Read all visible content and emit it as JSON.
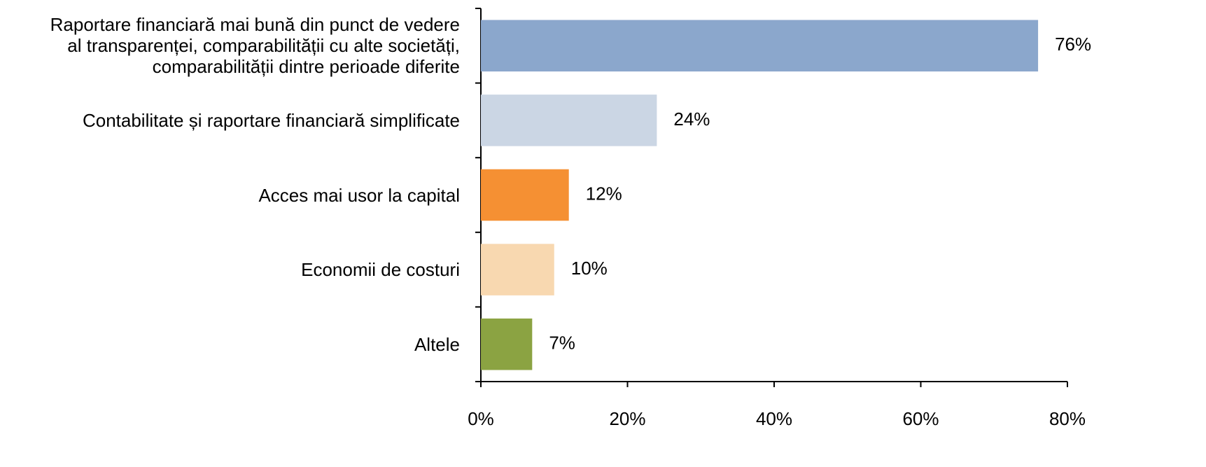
{
  "chart_data": {
    "type": "hbar",
    "categories": [
      "Raportare financiară mai bună din punct de vedere\nal transparenței, comparabilității cu alte societăți,\ncomparabilității dintre perioade diferite",
      "Contabilitate și raportare financiară simplificate",
      "Acces mai usor la capital",
      "Economii de costuri",
      "Altele"
    ],
    "values": [
      76,
      24,
      12,
      10,
      7
    ],
    "value_labels": [
      "76%",
      "24%",
      "12%",
      "10%",
      "7%"
    ],
    "colors": [
      "#8ba7cc",
      "#cbd6e4",
      "#f59033",
      "#f8d8b0",
      "#8ba342"
    ],
    "xlim": [
      0,
      80
    ],
    "xticks": [
      {
        "value": 0,
        "label": "0%"
      },
      {
        "value": 20,
        "label": "20%"
      },
      {
        "value": 40,
        "label": "40%"
      },
      {
        "value": 60,
        "label": "60%"
      },
      {
        "value": 80,
        "label": "80%"
      }
    ],
    "grid": false
  }
}
